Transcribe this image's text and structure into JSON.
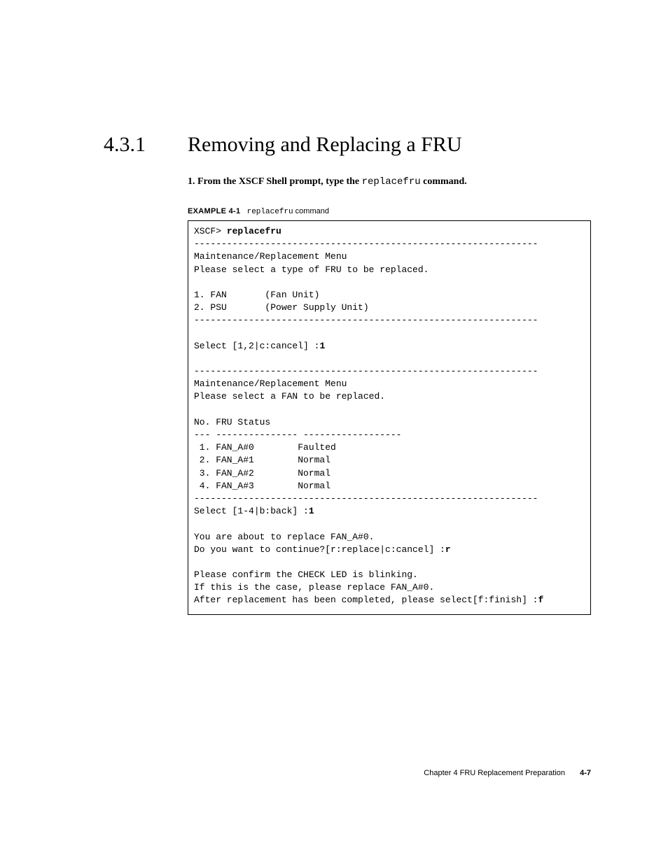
{
  "heading": {
    "number": "4.3.1",
    "title": "Removing and Replacing a FRU"
  },
  "step": {
    "number_prefix": "1.",
    "bold_before": "From the XSCF Shell prompt, type the ",
    "code": "replacefru",
    "bold_after": " command."
  },
  "example": {
    "label": "EXAMPLE 4-1",
    "caption_code": "replacefru",
    "caption_rest": " command"
  },
  "code": {
    "prompt": "XSCF> ",
    "command": "replacefru",
    "hr": "---------------------------------------------------------------",
    "menu_title": "Maintenance/Replacement Menu",
    "menu_prompt_type": "Please select a type of FRU to be replaced.",
    "option_fan": "1. FAN       (Fan Unit)",
    "option_psu": "2. PSU       (Power Supply Unit)",
    "select1_prefix": "Select [1,2|c:cancel] :",
    "select1_input": "1",
    "menu_prompt_fan": "Please select a FAN to be replaced.",
    "table_header": "No. FRU Status",
    "table_divider": "--- --------------- ------------------",
    "fan_rows": [
      " 1. FAN_A#0        Faulted",
      " 2. FAN_A#1        Normal",
      " 3. FAN_A#2        Normal",
      " 4. FAN_A#3        Normal"
    ],
    "select2_prefix": "Select [1-4|b:back] :",
    "select2_input": "1",
    "about_line": "You are about to replace FAN_A#0.",
    "continue_prefix": "Do you want to continue?[r:replace|c:cancel] :",
    "continue_input": "r",
    "confirm1": "Please confirm the CHECK LED is blinking.",
    "confirm2": "If this is the case, please replace FAN_A#0.",
    "finish_prefix": "After replacement has been completed, please select[f:finish] :",
    "finish_input": "f"
  },
  "footer": {
    "chapter": "Chapter 4    FRU Replacement Preparation",
    "pagenum": "4-7"
  }
}
